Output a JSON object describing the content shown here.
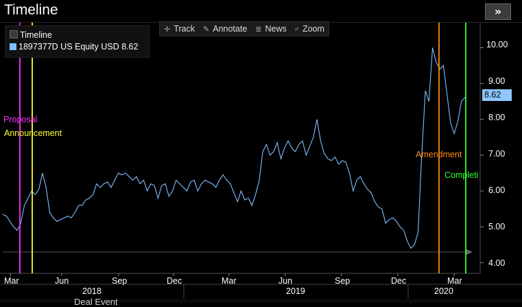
{
  "window": {
    "title": "Timeline",
    "expand_glyph": "»"
  },
  "legend": {
    "items": [
      {
        "label": "Timeline",
        "color": "#3a3a3a"
      },
      {
        "label": "1897377D US Equity USD 8.62",
        "color": "#7fbfff"
      }
    ]
  },
  "toolbar": [
    {
      "label": "Track",
      "icon": "crosshair-icon",
      "glyph": "✛"
    },
    {
      "label": "Annotate",
      "icon": "pencil-icon",
      "glyph": "✎"
    },
    {
      "label": "News",
      "icon": "news-icon",
      "glyph": "≣"
    },
    {
      "label": "Zoom",
      "icon": "magnifier-icon",
      "glyph": "⌕"
    }
  ],
  "last_value": "8.62",
  "y_axis_labels": [
    "10.00",
    "9.00",
    "8.00",
    "7.00",
    "6.00",
    "5.00",
    "4.00"
  ],
  "x_axis_month_labels": [
    "Mar",
    "Jun",
    "Sep",
    "Dec",
    "Mar",
    "Jun",
    "Sep",
    "Dec",
    "Mar"
  ],
  "x_axis_year_labels": [
    "2018",
    "2019",
    "2020"
  ],
  "events": [
    {
      "label": "Proposal",
      "color": "#ff33ff"
    },
    {
      "label": "Announcement",
      "color": "#ffff33"
    },
    {
      "label": "Amendment",
      "color": "#ff8c1a"
    },
    {
      "label": "Completi",
      "color": "#33ff33"
    }
  ],
  "bottom_fragment": "Deal Event",
  "chart_data": {
    "type": "line",
    "series": [
      {
        "name": "1897377D US Equity USD 8.62",
        "color": "#7fbfff"
      }
    ],
    "y": [
      5.35,
      5.3,
      5.15,
      5.0,
      4.9,
      5.1,
      5.6,
      5.8,
      6.0,
      5.9,
      6.05,
      6.5,
      6.1,
      5.4,
      5.25,
      5.15,
      5.2,
      5.25,
      5.3,
      5.25,
      5.4,
      5.6,
      5.6,
      5.75,
      5.8,
      5.9,
      6.2,
      6.1,
      6.2,
      6.25,
      6.1,
      6.3,
      6.5,
      6.45,
      6.5,
      6.4,
      6.3,
      6.4,
      6.2,
      6.3,
      6.0,
      6.2,
      6.15,
      5.8,
      6.15,
      6.2,
      5.85,
      6.0,
      6.3,
      6.2,
      6.1,
      6.0,
      6.25,
      6.3,
      6.0,
      6.2,
      6.3,
      6.25,
      6.2,
      6.1,
      6.3,
      6.45,
      6.3,
      6.2,
      5.95,
      5.7,
      6.0,
      5.75,
      5.8,
      5.6,
      5.9,
      6.3,
      7.1,
      7.3,
      7.0,
      7.1,
      7.35,
      6.9,
      7.2,
      7.4,
      7.2,
      7.1,
      7.3,
      7.4,
      7.0,
      7.25,
      7.5,
      8.0,
      7.4,
      7.05,
      6.9,
      6.85,
      6.95,
      6.75,
      6.85,
      6.8,
      6.5,
      6.0,
      6.3,
      6.4,
      6.2,
      6.05,
      5.95,
      5.7,
      5.55,
      5.5,
      5.1,
      5.2,
      5.25,
      5.15,
      5.0,
      4.9,
      4.6,
      4.4,
      4.5,
      4.85,
      7.0,
      8.8,
      8.5,
      10.0,
      9.6,
      9.4,
      9.5,
      8.7,
      7.9,
      7.6,
      7.95,
      8.5,
      8.62
    ],
    "ylim": [
      3.7,
      10.7
    ],
    "title": "Timeline",
    "xlabel": "",
    "ylabel": "",
    "grid": false,
    "legend": "top-left"
  }
}
